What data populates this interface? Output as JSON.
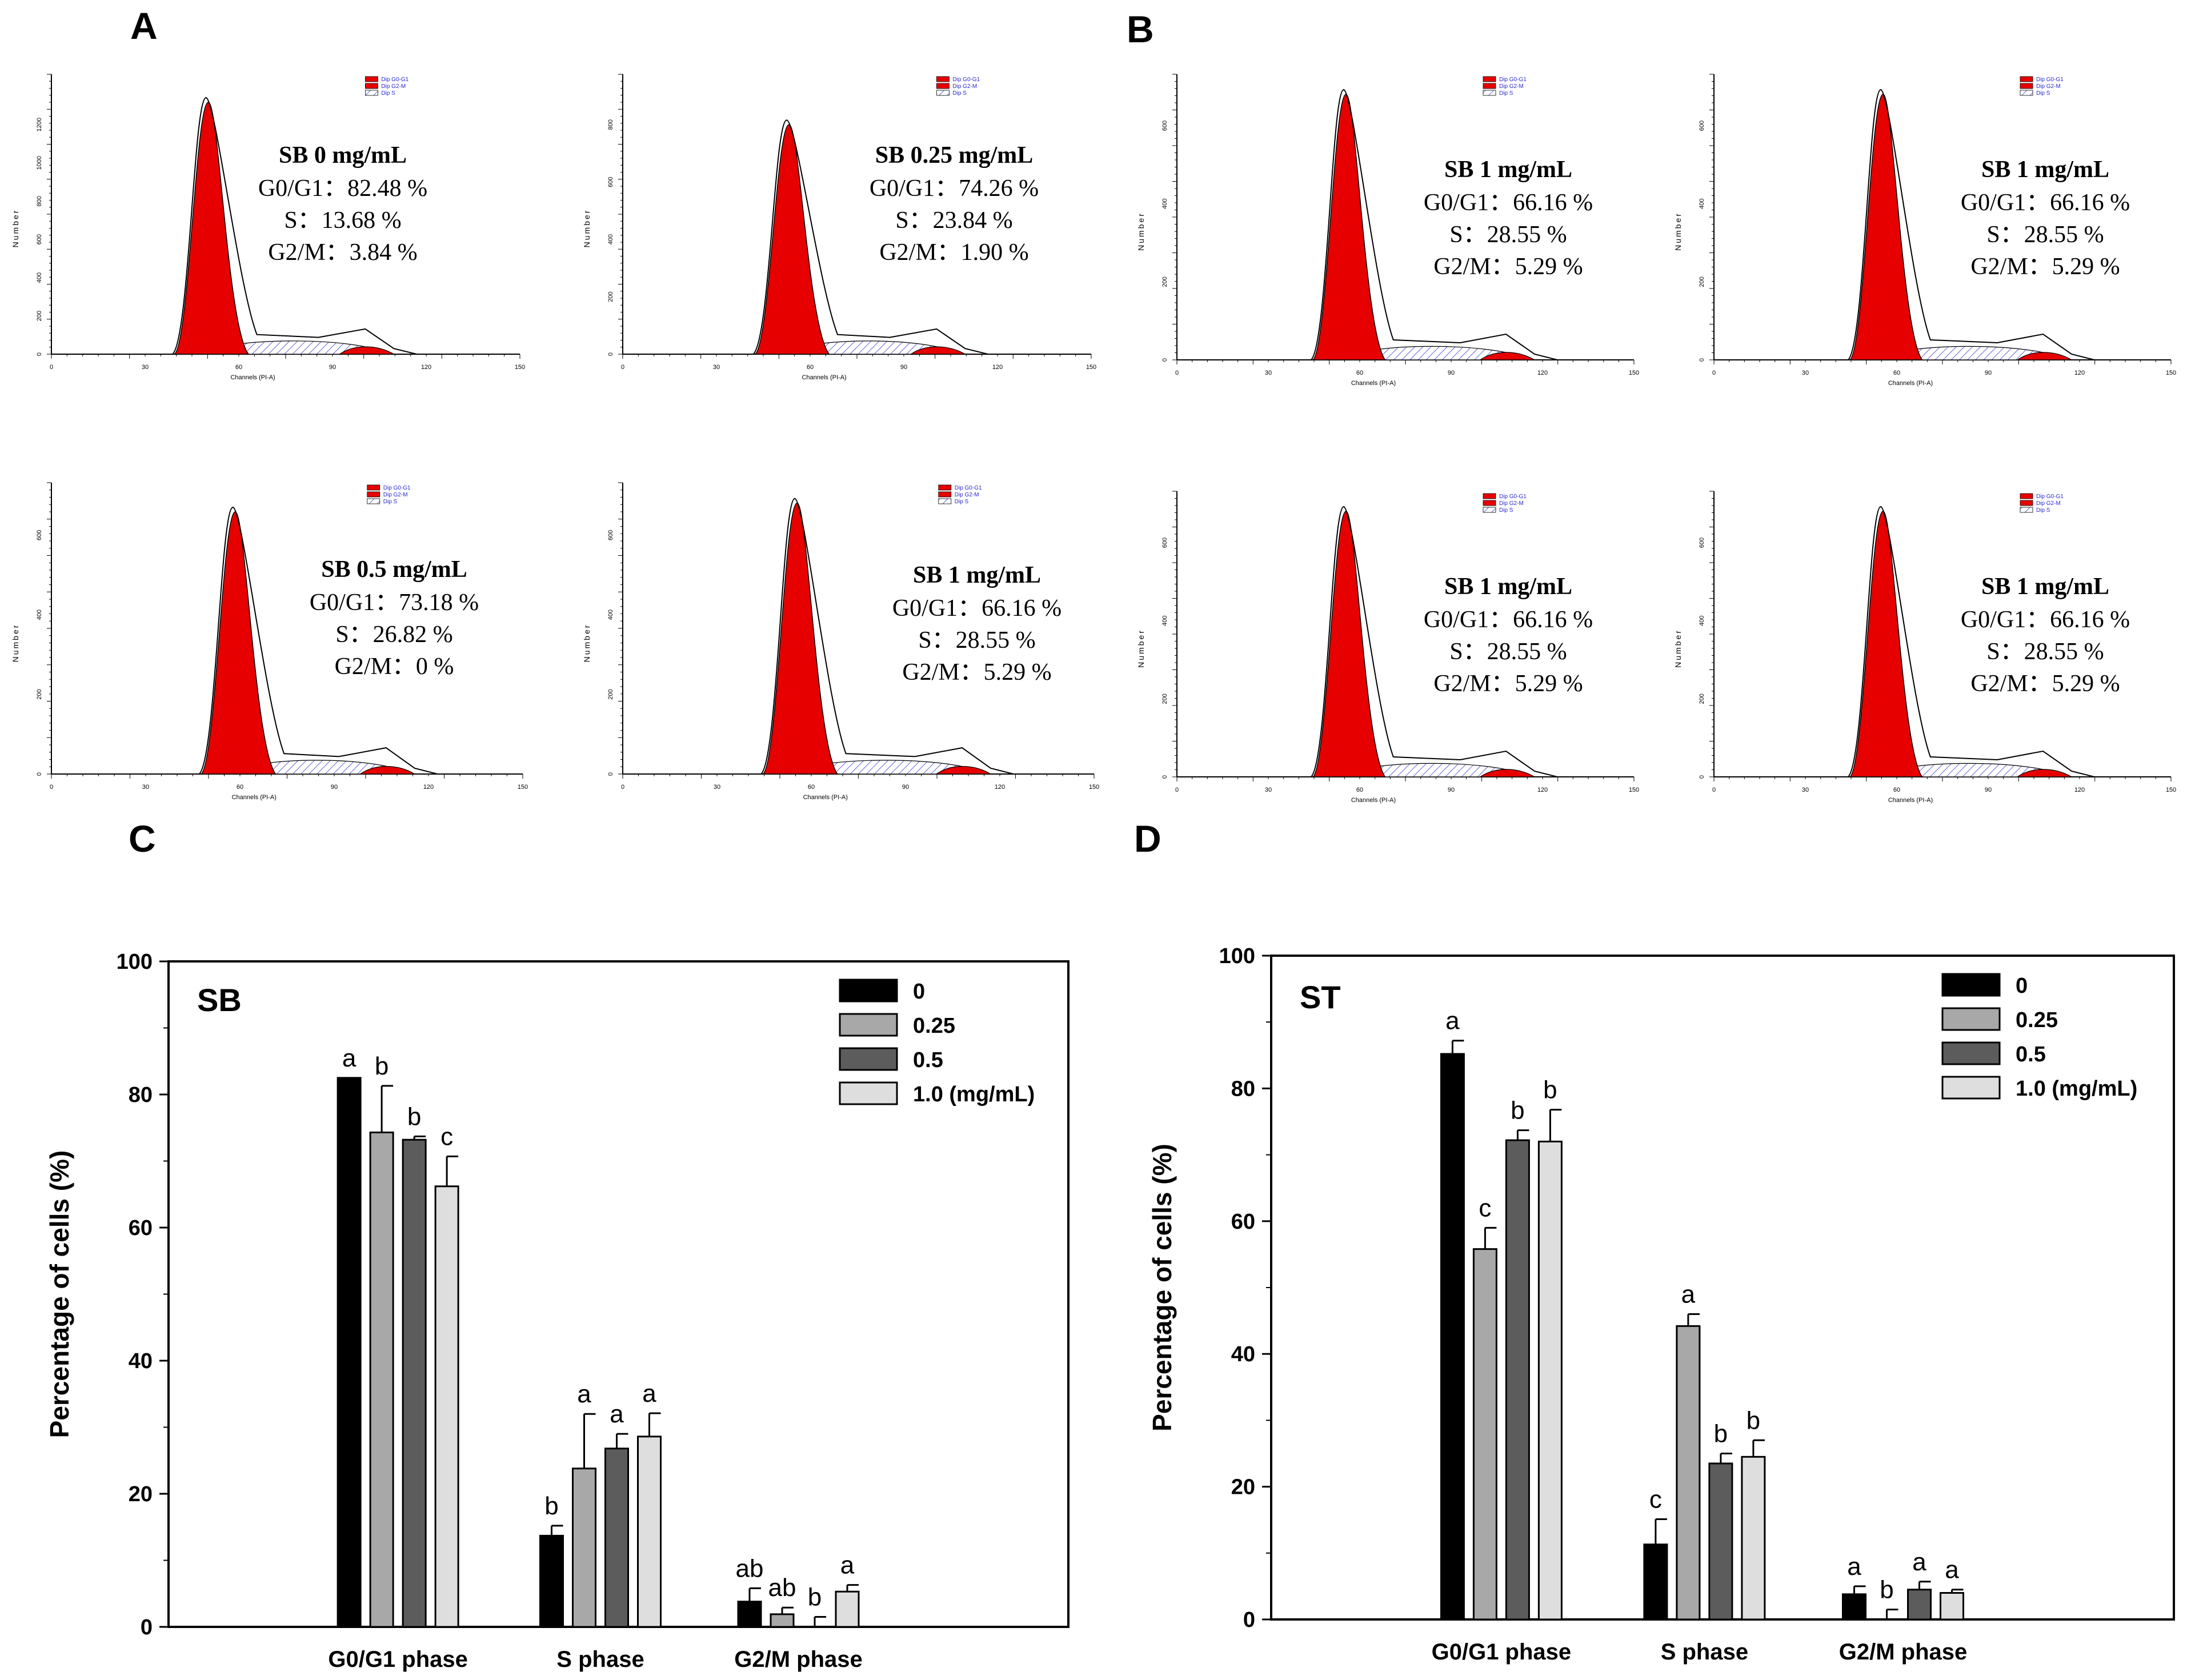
{
  "panel_labels": [
    "A",
    "B",
    "C",
    "D"
  ],
  "histogram_common": {
    "x_axis_label": "Channels (PI-A)",
    "y_axis_label": "Number",
    "legend": [
      "Dip G0-G1",
      "Dip G2-M",
      "Dip S"
    ]
  },
  "histograms": [
    {
      "id": "a1",
      "title": "SB 0 mg/mL",
      "g0g1": "G0/G1：82.48 %",
      "s": "S：13.68 %",
      "g2m": "G2/M：3.84 %",
      "x_ticks": [
        "0",
        "30",
        "60",
        "90",
        "120",
        "150"
      ],
      "y_ticks": [
        "0",
        "200",
        "400",
        "600",
        "800",
        "1000",
        "1200"
      ]
    },
    {
      "id": "a2",
      "title": "SB 0.25 mg/mL",
      "g0g1": "G0/G1：74.26 %",
      "s": "S：23.84 %",
      "g2m": "G2/M：1.90 %",
      "x_ticks": [
        "0",
        "30",
        "60",
        "90",
        "120",
        "150"
      ],
      "y_ticks": [
        "0",
        "200",
        "400",
        "600",
        "800"
      ]
    },
    {
      "id": "b1",
      "title": "SB 1 mg/mL",
      "g0g1": "G0/G1：66.16 %",
      "s": "S：28.55 %",
      "g2m": "G2/M：5.29 %",
      "x_ticks": [
        "0",
        "30",
        "60",
        "90",
        "120",
        "150"
      ],
      "y_ticks": [
        "0",
        "200",
        "400",
        "600"
      ]
    },
    {
      "id": "b2",
      "title": "SB 1 mg/mL",
      "g0g1": "G0/G1：66.16 %",
      "s": "S：28.55 %",
      "g2m": "G2/M：5.29 %",
      "x_ticks": [
        "0",
        "30",
        "60",
        "90",
        "120",
        "150"
      ],
      "y_ticks": [
        "0",
        "200",
        "400",
        "600"
      ]
    },
    {
      "id": "a3",
      "title": "SB 0.5 mg/mL",
      "g0g1": "G0/G1：73.18 %",
      "s": "S：26.82 %",
      "g2m": "G2/M：0 %",
      "x_ticks": [
        "0",
        "30",
        "60",
        "90",
        "120",
        "150"
      ],
      "y_ticks": [
        "0",
        "200",
        "400",
        "600"
      ]
    },
    {
      "id": "a4",
      "title": "SB 1 mg/mL",
      "g0g1": "G0/G1：66.16 %",
      "s": "S：28.55 %",
      "g2m": "G2/M：5.29 %",
      "x_ticks": [
        "0",
        "30",
        "60",
        "90",
        "120",
        "150"
      ],
      "y_ticks": [
        "0",
        "200",
        "400",
        "600"
      ]
    },
    {
      "id": "b3",
      "title": "SB 1 mg/mL",
      "g0g1": "G0/G1：66.16 %",
      "s": "S：28.55 %",
      "g2m": "G2/M：5.29 %",
      "x_ticks": [
        "0",
        "30",
        "60",
        "90",
        "120",
        "150"
      ],
      "y_ticks": [
        "0",
        "200",
        "400",
        "600"
      ]
    },
    {
      "id": "b4",
      "title": "SB 1 mg/mL",
      "g0g1": "G0/G1：66.16 %",
      "s": "S：28.55 %",
      "g2m": "G2/M：5.29 %",
      "x_ticks": [
        "0",
        "30",
        "60",
        "90",
        "120",
        "150"
      ],
      "y_ticks": [
        "0",
        "200",
        "400",
        "600"
      ]
    }
  ],
  "colors": {
    "g0g1": "#e60000",
    "s_hatch": "#3a3ad0",
    "bars": [
      "#000000",
      "#a8a8a8",
      "#5c5c5c",
      "#dedede"
    ]
  },
  "chart_data": [
    {
      "type": "bar",
      "title": "SB",
      "xlabel": "",
      "ylabel": "Percentage of cells (%)",
      "ylim": [
        0,
        100
      ],
      "yticks": [
        "0",
        "20",
        "40",
        "60",
        "80",
        "100"
      ],
      "categories": [
        "G0/G1 phase",
        "S phase",
        "G2/M phase"
      ],
      "legend_position": "top-right",
      "series": [
        {
          "name": "0",
          "values": [
            82.5,
            13.7,
            3.8
          ],
          "errors": [
            0,
            1.5,
            2.0
          ],
          "letters": [
            "a",
            "b",
            "ab"
          ]
        },
        {
          "name": "0.25",
          "values": [
            74.3,
            23.8,
            1.9
          ],
          "errors": [
            7.0,
            8.2,
            1.0
          ],
          "letters": [
            "b",
            "a",
            "ab"
          ]
        },
        {
          "name": "0.5",
          "values": [
            73.2,
            26.8,
            0
          ],
          "errors": [
            0.5,
            2.2,
            1.5
          ],
          "letters": [
            "b",
            "a",
            "b"
          ]
        },
        {
          "name": "1.0 (mg/mL)",
          "values": [
            66.2,
            28.6,
            5.3
          ],
          "errors": [
            4.5,
            3.5,
            1.0
          ],
          "letters": [
            "c",
            "a",
            "a"
          ]
        }
      ]
    },
    {
      "type": "bar",
      "title": "ST",
      "xlabel": "",
      "ylabel": "Percentage of cells (%)",
      "ylim": [
        0,
        100
      ],
      "yticks": [
        "0",
        "20",
        "40",
        "60",
        "80",
        "100"
      ],
      "categories": [
        "G0/G1 phase",
        "S phase",
        "G2/M phase"
      ],
      "legend_position": "top-right",
      "series": [
        {
          "name": "0",
          "values": [
            85.2,
            11.3,
            3.8
          ],
          "errors": [
            2.0,
            3.8,
            1.2
          ],
          "letters": [
            "a",
            "c",
            "a"
          ]
        },
        {
          "name": "0.25",
          "values": [
            55.8,
            44.2,
            0
          ],
          "errors": [
            3.2,
            1.8,
            1.5
          ],
          "letters": [
            "c",
            "a",
            "b"
          ]
        },
        {
          "name": "0.5",
          "values": [
            72.2,
            23.5,
            4.5
          ],
          "errors": [
            1.5,
            1.5,
            1.2
          ],
          "letters": [
            "b",
            "b",
            "a"
          ]
        },
        {
          "name": "1.0 (mg/mL)",
          "values": [
            72.0,
            24.5,
            4.0
          ],
          "errors": [
            4.8,
            2.5,
            0.5
          ],
          "letters": [
            "b",
            "b",
            "a"
          ]
        }
      ]
    }
  ]
}
